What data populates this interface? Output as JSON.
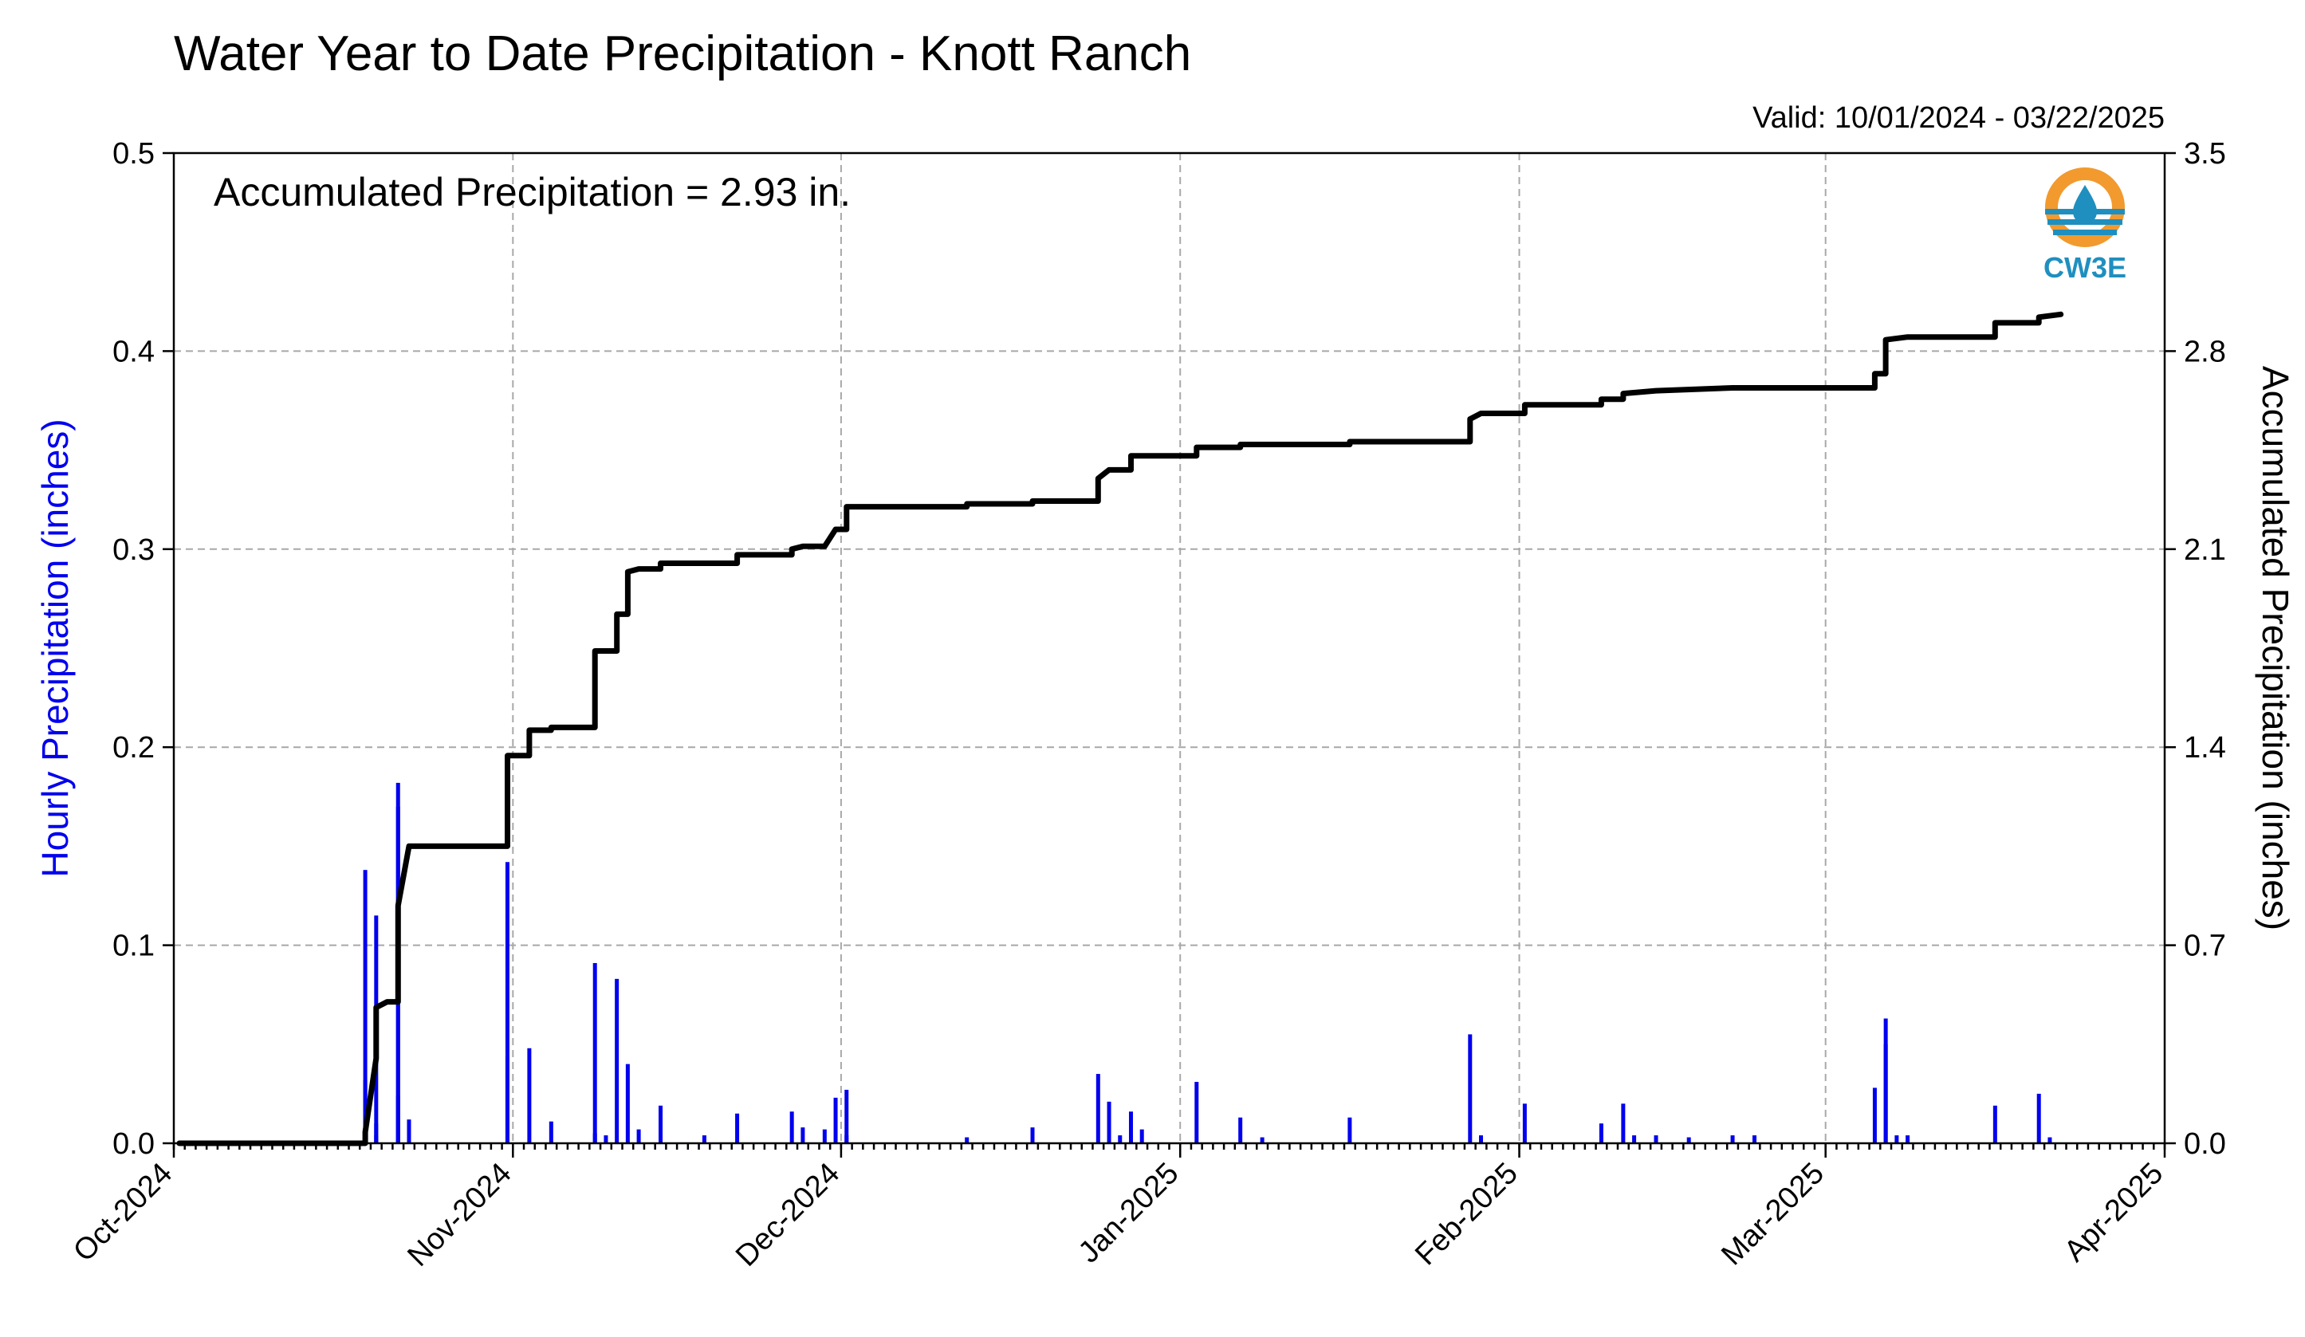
{
  "chart_data": {
    "type": "bar+line",
    "title": "Water Year to Date Precipitation - Knott Ranch",
    "valid_text": "Valid: 10/01/2024 - 03/22/2025",
    "annotation": "Accumulated Precipitation = 2.93 in.",
    "logo_text": "CW3E",
    "y_left_label": "Hourly Precipitation (inches)",
    "y_right_label": "Accumulated Precipitation (inches)",
    "y_left_ticks": [
      "0.0",
      "0.1",
      "0.2",
      "0.3",
      "0.4",
      "0.5"
    ],
    "y_right_ticks": [
      "0.0",
      "0.7",
      "1.4",
      "2.1",
      "2.8",
      "3.5"
    ],
    "y_left_range": [
      0,
      0.5
    ],
    "y_right_range": [
      0,
      3.5
    ],
    "x_range": [
      "2024-10-01",
      "2025-04-01"
    ],
    "x_ticks": [
      {
        "date": "2024-10-01",
        "label": "Oct-2024"
      },
      {
        "date": "2024-11-01",
        "label": "Nov-2024"
      },
      {
        "date": "2024-12-01",
        "label": "Dec-2024"
      },
      {
        "date": "2025-01-01",
        "label": "Jan-2025"
      },
      {
        "date": "2025-02-01",
        "label": "Feb-2025"
      },
      {
        "date": "2025-03-01",
        "label": "Mar-2025"
      },
      {
        "date": "2025-04-01",
        "label": "Apr-2025"
      }
    ],
    "grid": true,
    "colors": {
      "hourly": "#0000ee",
      "accumulated": "#000000",
      "grid": "#a8a8a8",
      "logo_orange": "#f29a2e",
      "logo_blue": "#1f8fbf"
    },
    "hourly_series": {
      "name": "Hourly Precipitation (inches)",
      "points": [
        [
          "2024-10-18",
          0.032
        ],
        [
          "2024-10-18",
          0.138
        ],
        [
          "2024-10-19",
          0.115
        ],
        [
          "2024-10-19",
          0.01
        ],
        [
          "2024-10-19",
          0.004
        ],
        [
          "2024-10-21",
          0.024
        ],
        [
          "2024-10-21",
          0.17
        ],
        [
          "2024-10-21",
          0.182
        ],
        [
          "2024-10-22",
          0.012
        ],
        [
          "2024-10-31",
          0.044
        ],
        [
          "2024-10-31",
          0.142
        ],
        [
          "2024-11-02",
          0.048
        ],
        [
          "2024-11-04",
          0.011
        ],
        [
          "2024-11-08",
          0.091
        ],
        [
          "2024-11-08",
          0.005
        ],
        [
          "2024-11-09",
          0.004
        ],
        [
          "2024-11-10",
          0.083
        ],
        [
          "2024-11-11",
          0.04
        ],
        [
          "2024-11-12",
          0.007
        ],
        [
          "2024-11-14",
          0.019
        ],
        [
          "2024-11-18",
          0.004
        ],
        [
          "2024-11-21",
          0.015
        ],
        [
          "2024-11-26",
          0.016
        ],
        [
          "2024-11-27",
          0.008
        ],
        [
          "2024-11-29",
          0.007
        ],
        [
          "2024-11-30",
          0.023
        ],
        [
          "2024-12-01",
          0.027
        ],
        [
          "2024-12-01",
          0.004
        ],
        [
          "2024-12-12",
          0.003
        ],
        [
          "2024-12-18",
          0.008
        ],
        [
          "2024-12-24",
          0.035
        ],
        [
          "2024-12-25",
          0.021
        ],
        [
          "2024-12-26",
          0.004
        ],
        [
          "2024-12-27",
          0.016
        ],
        [
          "2024-12-28",
          0.007
        ],
        [
          "2025-01-02",
          0.031
        ],
        [
          "2025-01-06",
          0.013
        ],
        [
          "2025-01-08",
          0.003
        ],
        [
          "2025-01-16",
          0.013
        ],
        [
          "2025-01-27",
          0.055
        ],
        [
          "2025-01-28",
          0.004
        ],
        [
          "2025-02-01",
          0.02
        ],
        [
          "2025-02-08",
          0.01
        ],
        [
          "2025-02-10",
          0.02
        ],
        [
          "2025-02-11",
          0.004
        ],
        [
          "2025-02-13",
          0.004
        ],
        [
          "2025-02-16",
          0.003
        ],
        [
          "2025-02-20",
          0.004
        ],
        [
          "2025-02-22",
          0.004
        ],
        [
          "2025-03-05",
          0.028
        ],
        [
          "2025-03-06",
          0.063
        ],
        [
          "2025-03-06",
          0.05
        ],
        [
          "2025-03-07",
          0.004
        ],
        [
          "2025-03-08",
          0.004
        ],
        [
          "2025-03-16",
          0.019
        ],
        [
          "2025-03-20",
          0.025
        ],
        [
          "2025-03-21",
          0.003
        ]
      ]
    },
    "accumulated_series": {
      "name": "Accumulated Precipitation (inches)",
      "points": [
        [
          "2024-10-01",
          0.0
        ],
        [
          "2024-10-18",
          0.0
        ],
        [
          "2024-10-18",
          0.04
        ],
        [
          "2024-10-19",
          0.3
        ],
        [
          "2024-10-19",
          0.48
        ],
        [
          "2024-10-20",
          0.5
        ],
        [
          "2024-10-21",
          0.5
        ],
        [
          "2024-10-21",
          0.84
        ],
        [
          "2024-10-22",
          1.05
        ],
        [
          "2024-10-31",
          1.05
        ],
        [
          "2024-10-31",
          1.37
        ],
        [
          "2024-11-02",
          1.37
        ],
        [
          "2024-11-02",
          1.46
        ],
        [
          "2024-11-04",
          1.46
        ],
        [
          "2024-11-04",
          1.47
        ],
        [
          "2024-11-08",
          1.47
        ],
        [
          "2024-11-08",
          1.74
        ],
        [
          "2024-11-10",
          1.74
        ],
        [
          "2024-11-10",
          1.87
        ],
        [
          "2024-11-11",
          1.87
        ],
        [
          "2024-11-11",
          2.02
        ],
        [
          "2024-11-12",
          2.03
        ],
        [
          "2024-11-14",
          2.03
        ],
        [
          "2024-11-14",
          2.05
        ],
        [
          "2024-11-21",
          2.05
        ],
        [
          "2024-11-21",
          2.08
        ],
        [
          "2024-11-26",
          2.08
        ],
        [
          "2024-11-26",
          2.1
        ],
        [
          "2024-11-27",
          2.11
        ],
        [
          "2024-11-29",
          2.11
        ],
        [
          "2024-11-30",
          2.17
        ],
        [
          "2024-12-01",
          2.17
        ],
        [
          "2024-12-01",
          2.25
        ],
        [
          "2024-12-12",
          2.25
        ],
        [
          "2024-12-12",
          2.26
        ],
        [
          "2024-12-18",
          2.26
        ],
        [
          "2024-12-18",
          2.27
        ],
        [
          "2024-12-24",
          2.27
        ],
        [
          "2024-12-24",
          2.35
        ],
        [
          "2024-12-25",
          2.38
        ],
        [
          "2024-12-27",
          2.38
        ],
        [
          "2024-12-27",
          2.43
        ],
        [
          "2025-01-02",
          2.43
        ],
        [
          "2025-01-02",
          2.46
        ],
        [
          "2025-01-06",
          2.46
        ],
        [
          "2025-01-06",
          2.47
        ],
        [
          "2025-01-16",
          2.47
        ],
        [
          "2025-01-16",
          2.48
        ],
        [
          "2025-01-27",
          2.48
        ],
        [
          "2025-01-27",
          2.56
        ],
        [
          "2025-01-28",
          2.58
        ],
        [
          "2025-02-01",
          2.58
        ],
        [
          "2025-02-01",
          2.61
        ],
        [
          "2025-02-08",
          2.61
        ],
        [
          "2025-02-08",
          2.63
        ],
        [
          "2025-02-10",
          2.63
        ],
        [
          "2025-02-10",
          2.65
        ],
        [
          "2025-02-13",
          2.66
        ],
        [
          "2025-02-20",
          2.67
        ],
        [
          "2025-03-05",
          2.67
        ],
        [
          "2025-03-05",
          2.72
        ],
        [
          "2025-03-06",
          2.72
        ],
        [
          "2025-03-06",
          2.84
        ],
        [
          "2025-03-08",
          2.85
        ],
        [
          "2025-03-16",
          2.85
        ],
        [
          "2025-03-16",
          2.9
        ],
        [
          "2025-03-20",
          2.9
        ],
        [
          "2025-03-20",
          2.92
        ],
        [
          "2025-03-22",
          2.93
        ]
      ]
    }
  }
}
